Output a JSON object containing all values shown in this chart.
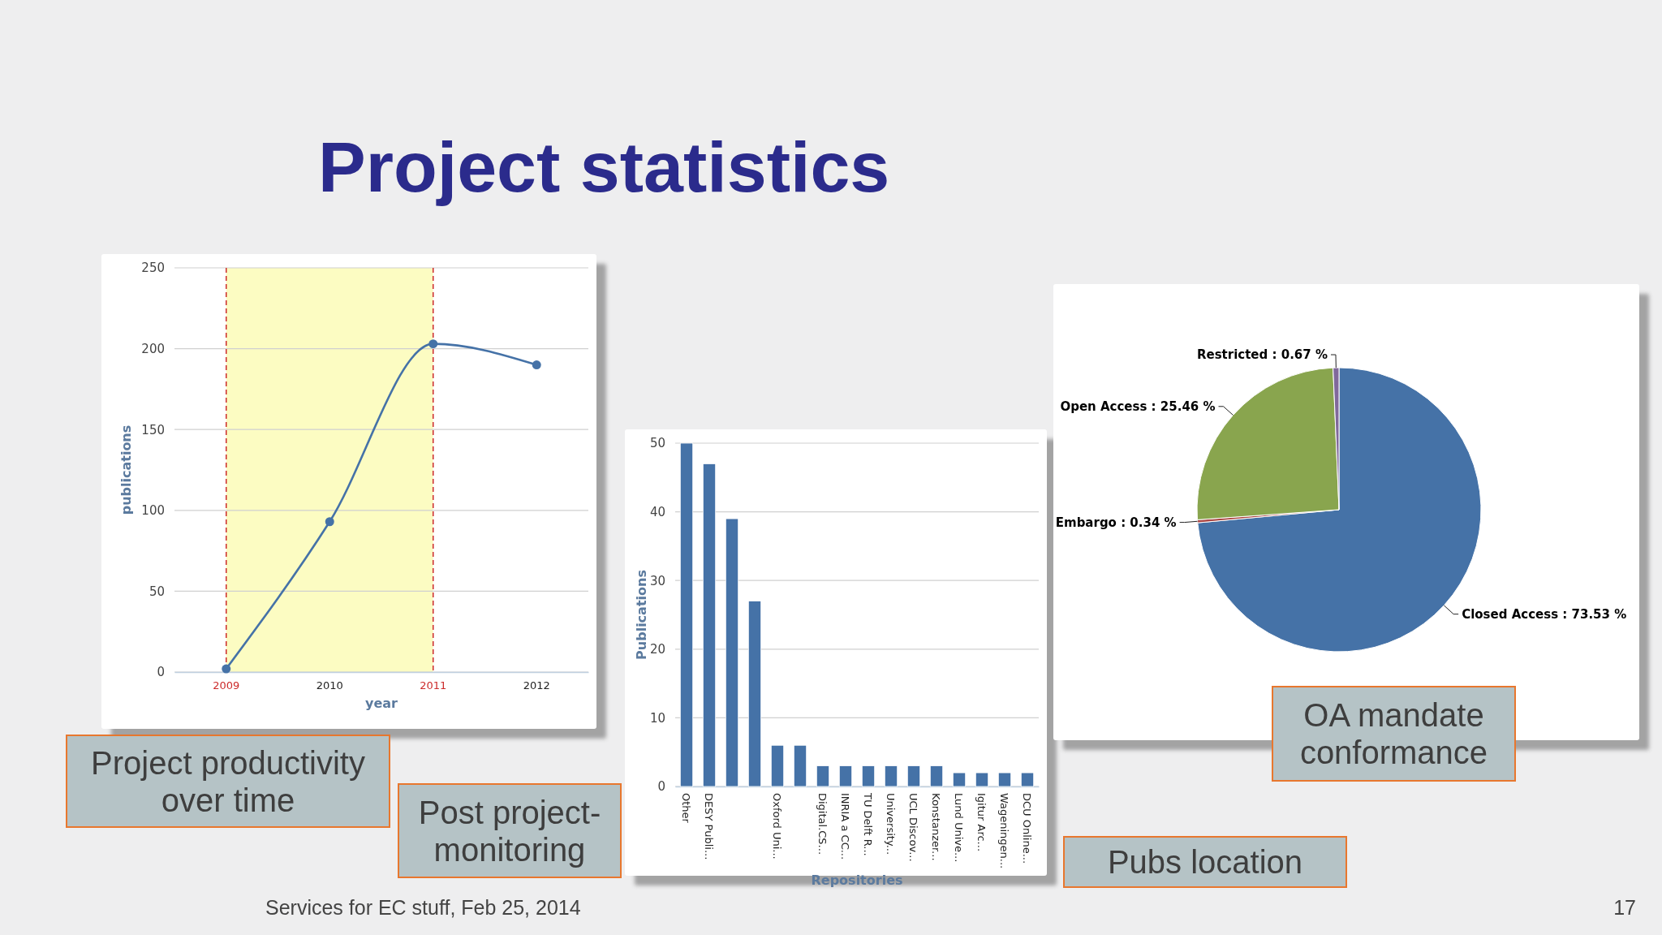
{
  "chart_data": [
    {
      "type": "other",
      "title": "Project statistics",
      "annotations": [
        "Post project-monitoring",
        "Services for EC stuff, Feb 25, 2014",
        "17"
      ]
    },
    {
      "type": "line",
      "categories": [
        "2009",
        "2010",
        "2011",
        "2012"
      ],
      "values": [
        2,
        93,
        203,
        190
      ],
      "color": "#4572a7",
      "marker": "circle",
      "ylim": [
        0,
        250
      ],
      "yticks": [
        0,
        50,
        100,
        150,
        200,
        250
      ],
      "grid": "y",
      "xlabel": "year",
      "ylabel": "publications",
      "bands": [
        {
          "axis": "x",
          "from": "2009",
          "to": "2011",
          "color": "#fcfcc2"
        }
      ],
      "ref_lines": [
        {
          "axis": "x",
          "value": "2009",
          "color": "#cc2b2b",
          "line_style": "dashed"
        },
        {
          "axis": "x",
          "value": "2011",
          "color": "#cc2b2b",
          "line_style": "dashed"
        }
      ],
      "annotations": [
        "Project productivity over time"
      ]
    },
    {
      "type": "bar",
      "categories": [
        "Other",
        "DESY Publi...",
        null,
        null,
        "Oxford Uni...",
        null,
        "Digital.CS...",
        "INRIA a CC...",
        "TU Delft R...",
        "University...",
        "UCL Discov...",
        "Konstanzer...",
        "Lund Unive...",
        "Igitur Arc...",
        "Wageningen...",
        "DCU Online..."
      ],
      "values": [
        50,
        47,
        39,
        27,
        6,
        6,
        3,
        3,
        3,
        3,
        3,
        3,
        2,
        2,
        2,
        2
      ],
      "color": "#4572a7",
      "ylim": [
        0,
        50
      ],
      "yticks": [
        0,
        10,
        20,
        30,
        40,
        50
      ],
      "grid": "y",
      "xlabel": "Repositories",
      "ylabel": "Publications",
      "annotations": [
        "Pubs location"
      ]
    },
    {
      "type": "pie",
      "categories": [
        "Closed Access",
        "Embargo",
        "Open Access",
        "Restricted"
      ],
      "values": [
        73.53,
        0.34,
        25.46,
        0.67
      ],
      "colors": [
        "#4572a7",
        "#aa4643",
        "#89a54e",
        "#80699b"
      ],
      "value_labels": [
        ": 73.53 %",
        ": 0.34 %",
        ": 25.46 %",
        ": 0.67 %"
      ],
      "annotations": [
        "OA mandate conformance"
      ]
    }
  ]
}
